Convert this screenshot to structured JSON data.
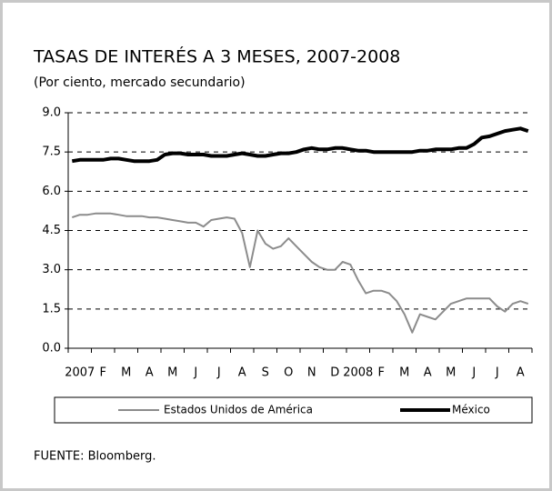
{
  "chart_data": {
    "type": "line",
    "title": "TASAS DE INTERÉS A 3 MESES, 2007-2008",
    "subtitle": "(Por ciento, mercado secundario)",
    "source": "FUENTE: Bloomberg.",
    "categories": [
      "2007",
      null,
      null,
      "F",
      null,
      null,
      "M",
      null,
      null,
      "A",
      null,
      null,
      "M",
      null,
      null,
      "J",
      null,
      null,
      "J",
      null,
      null,
      "A",
      null,
      null,
      "S",
      null,
      null,
      "O",
      null,
      null,
      "N",
      null,
      null,
      "D",
      null,
      null,
      "2008",
      null,
      null,
      "F",
      null,
      null,
      "M",
      null,
      null,
      "A",
      null,
      null,
      "M",
      null,
      null,
      "J",
      null,
      null,
      "J",
      null,
      null,
      "A",
      null,
      null
    ],
    "series": [
      {
        "name": "Estados Unidos de América",
        "color": "#8c8c8c",
        "values": [
          5.0,
          5.1,
          5.1,
          5.15,
          5.15,
          5.15,
          5.1,
          5.05,
          5.05,
          5.05,
          5.0,
          5.0,
          4.95,
          4.9,
          4.85,
          4.8,
          4.8,
          4.65,
          4.9,
          4.95,
          5.0,
          4.95,
          4.4,
          3.1,
          4.5,
          4.0,
          3.8,
          3.9,
          4.2,
          3.9,
          3.6,
          3.3,
          3.1,
          3.0,
          3.0,
          3.3,
          3.2,
          2.6,
          2.1,
          2.2,
          2.2,
          2.1,
          1.8,
          1.3,
          0.6,
          1.3,
          1.2,
          1.1,
          1.4,
          1.7,
          1.8,
          1.9,
          1.9,
          1.9,
          1.9,
          1.6,
          1.4,
          1.7,
          1.8,
          1.7
        ]
      },
      {
        "name": "México",
        "color": "#000000",
        "values": [
          7.15,
          7.2,
          7.2,
          7.2,
          7.2,
          7.25,
          7.25,
          7.2,
          7.15,
          7.15,
          7.15,
          7.2,
          7.4,
          7.45,
          7.45,
          7.4,
          7.4,
          7.4,
          7.35,
          7.35,
          7.35,
          7.4,
          7.45,
          7.4,
          7.35,
          7.35,
          7.4,
          7.45,
          7.45,
          7.5,
          7.6,
          7.65,
          7.6,
          7.6,
          7.65,
          7.65,
          7.6,
          7.55,
          7.55,
          7.5,
          7.5,
          7.5,
          7.5,
          7.5,
          7.5,
          7.55,
          7.55,
          7.6,
          7.6,
          7.6,
          7.65,
          7.65,
          7.8,
          8.05,
          8.1,
          8.2,
          8.3,
          8.35,
          8.4,
          8.3
        ]
      }
    ],
    "ylim": [
      0,
      9
    ],
    "yticks": [
      {
        "value": 0,
        "label": "0.0"
      },
      {
        "value": 1.5,
        "label": "1.5"
      },
      {
        "value": 3,
        "label": "3.0"
      },
      {
        "value": 4.5,
        "label": "4.5"
      },
      {
        "value": 6,
        "label": "6.0"
      },
      {
        "value": 7.5,
        "label": "7.5"
      },
      {
        "value": 9,
        "label": "9.0"
      }
    ],
    "grid": true
  }
}
